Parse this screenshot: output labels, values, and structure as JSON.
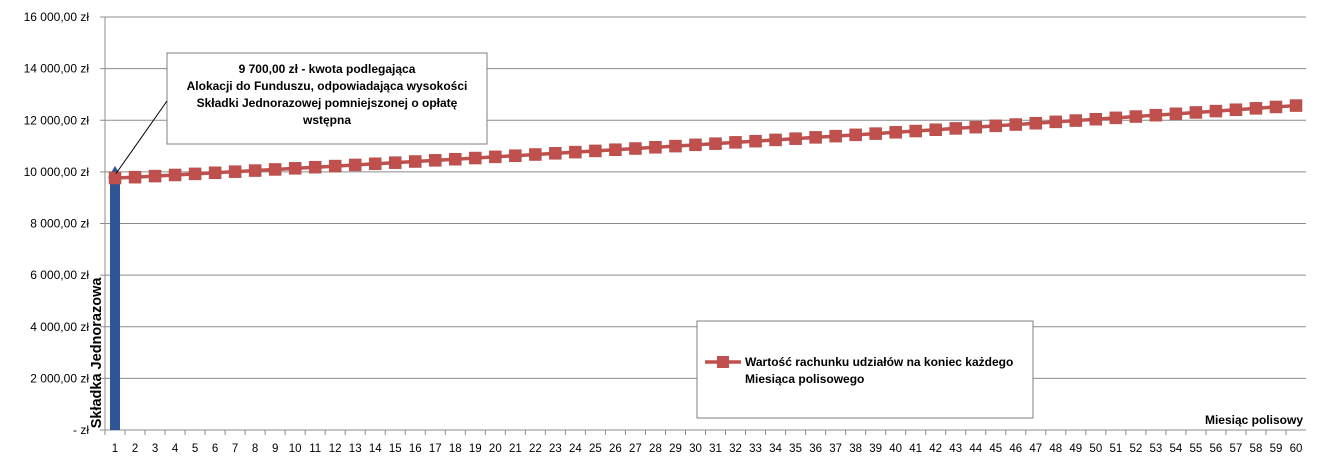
{
  "chart_data": {
    "type": "line",
    "title": "",
    "xlabel": "Miesiąc polisowy",
    "ylabel": "",
    "categories": [
      "1",
      "2",
      "3",
      "4",
      "5",
      "6",
      "7",
      "8",
      "9",
      "10",
      "11",
      "12",
      "13",
      "14",
      "15",
      "16",
      "17",
      "18",
      "19",
      "20",
      "21",
      "22",
      "23",
      "24",
      "25",
      "26",
      "27",
      "28",
      "29",
      "30",
      "31",
      "32",
      "33",
      "34",
      "35",
      "36",
      "37",
      "38",
      "39",
      "40",
      "41",
      "42",
      "43",
      "44",
      "45",
      "46",
      "47",
      "48",
      "49",
      "50",
      "51",
      "52",
      "53",
      "54",
      "55",
      "56",
      "57",
      "58",
      "59",
      "60"
    ],
    "ylim": [
      0,
      16000
    ],
    "yticks": [
      {
        "value": 0,
        "label": "- zł"
      },
      {
        "value": 2000,
        "label": "2 000,00 zł"
      },
      {
        "value": 4000,
        "label": "4 000,00 zł"
      },
      {
        "value": 6000,
        "label": "6 000,00 zł"
      },
      {
        "value": 8000,
        "label": "8 000,00 zł"
      },
      {
        "value": 10000,
        "label": "10 000,00 zł"
      },
      {
        "value": 12000,
        "label": "12 000,00 zł"
      },
      {
        "value": 14000,
        "label": "14 000,00 zł"
      },
      {
        "value": 16000,
        "label": "16 000,00 zł"
      }
    ],
    "grid": true,
    "series": [
      {
        "name": "Wartość rachunku udziałów na koniec każdego Miesiąca polisowego",
        "color": "#c0504d",
        "marker": "square",
        "values": [
          9762,
          9795,
          9837,
          9880,
          9922,
          9965,
          10008,
          10051,
          10094,
          10137,
          10181,
          10225,
          10268,
          10313,
          10357,
          10402,
          10446,
          10491,
          10536,
          10582,
          10627,
          10673,
          10719,
          10765,
          10812,
          10858,
          10905,
          10952,
          10999,
          11047,
          11094,
          11142,
          11190,
          11238,
          11287,
          11336,
          11385,
          11434,
          11483,
          11533,
          11582,
          11632,
          11683,
          11733,
          11784,
          11834,
          11885,
          11937,
          11988,
          12040,
          12092,
          12144,
          12196,
          12249,
          12302,
          12355,
          12408,
          12461,
          12515,
          12569
        ]
      }
    ],
    "bar": {
      "category": "1",
      "value": 10000,
      "label": "Składka Jednorazowa",
      "color": "#2f5597"
    },
    "annotation": {
      "lines": [
        "9 700,00 zł - kwota podlegająca",
        "Alokacji do Funduszu, odpowiadająca wysokości",
        "Składki Jednorazowej pomniejszonej o opłatę",
        "wstępna"
      ],
      "points_to_category": "1",
      "points_to_value": 9700
    },
    "legend": {
      "placement": "bottom-center",
      "lines": [
        "Wartość rachunku udziałów na koniec każdego",
        "Miesiąca polisowego"
      ]
    }
  }
}
